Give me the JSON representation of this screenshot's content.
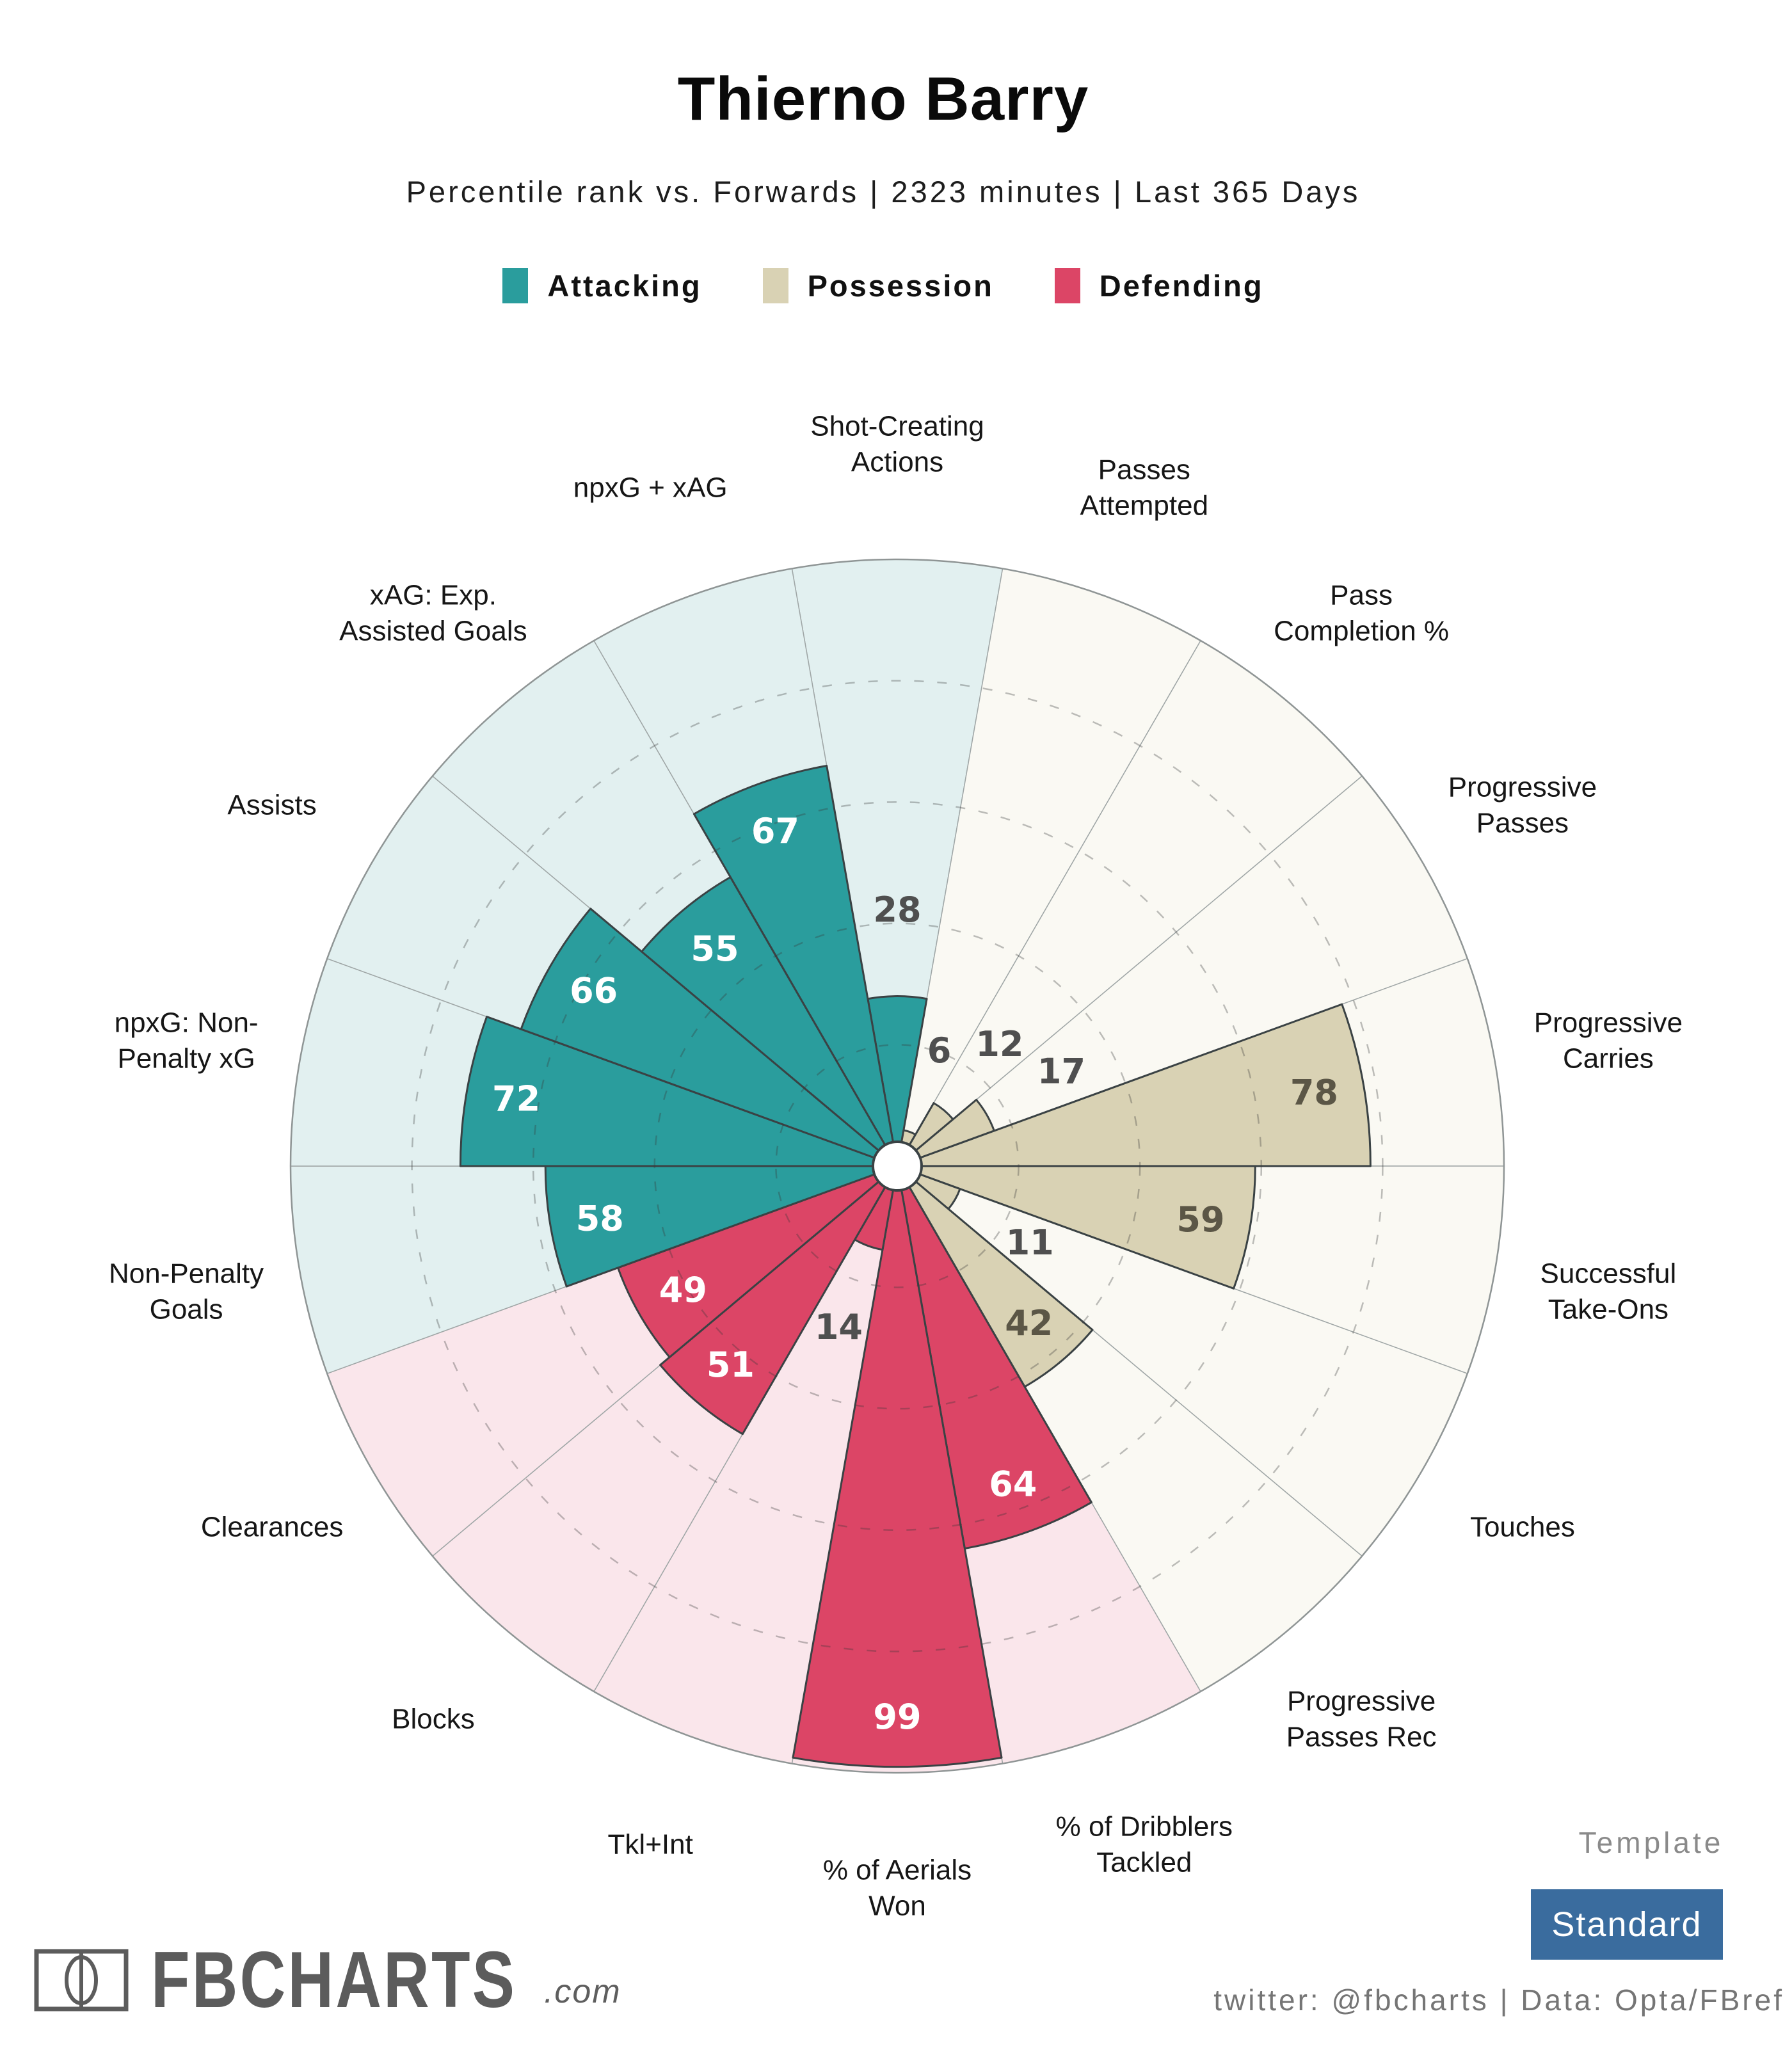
{
  "header": {
    "title": "Thierno Barry",
    "subtitle": "Percentile rank vs. Forwards | 2323 minutes | Last 365 Days",
    "legend": [
      {
        "id": "attacking",
        "label": "Attacking"
      },
      {
        "id": "possession",
        "label": "Possession"
      },
      {
        "id": "defending",
        "label": "Defending"
      }
    ]
  },
  "chart_data": {
    "type": "bar",
    "variant": "pizza-polar-percentile",
    "title": "Thierno Barry",
    "subtitle": "Percentile rank vs. Forwards | 2323 minutes | Last 365 Days",
    "max_value": 100,
    "slice_angle_deg": 20,
    "start_angle_deg": 90,
    "direction": "clockwise",
    "grid_rings": [
      20,
      40,
      60,
      80
    ],
    "grid_style": "dashed",
    "categories": [
      "Shot-Creating Actions",
      "Passes Attempted",
      "Pass Completion %",
      "Progressive Passes",
      "Progressive Carries",
      "Successful Take-Ons",
      "Touches",
      "Progressive Passes Rec",
      "% of Dribblers Tackled",
      "% of Aerials Won",
      "Tkl+Int",
      "Blocks",
      "Clearances",
      "Non-Penalty Goals",
      "npxG: Non-Penalty xG",
      "Assists",
      "xAG: Exp. Assisted Goals",
      "npxG + xAG"
    ],
    "values": [
      28,
      6,
      12,
      17,
      78,
      59,
      11,
      42,
      64,
      99,
      14,
      51,
      49,
      58,
      72,
      66,
      55,
      67
    ],
    "slices": [
      {
        "name": "Shot-Creating Actions",
        "lines": [
          "Shot-Creating",
          "Actions"
        ],
        "value": 28,
        "group": "attacking"
      },
      {
        "name": "Passes Attempted",
        "lines": [
          "Passes",
          "Attempted"
        ],
        "value": 6,
        "group": "possession"
      },
      {
        "name": "Pass Completion %",
        "lines": [
          "Pass",
          "Completion %"
        ],
        "value": 12,
        "group": "possession"
      },
      {
        "name": "Progressive Passes",
        "lines": [
          "Progressive",
          "Passes"
        ],
        "value": 17,
        "group": "possession"
      },
      {
        "name": "Progressive Carries",
        "lines": [
          "Progressive",
          "Carries"
        ],
        "value": 78,
        "group": "possession"
      },
      {
        "name": "Successful Take-Ons",
        "lines": [
          "Successful",
          "Take-Ons"
        ],
        "value": 59,
        "group": "possession"
      },
      {
        "name": "Touches",
        "lines": [
          "Touches"
        ],
        "value": 11,
        "group": "possession"
      },
      {
        "name": "Progressive Passes Rec",
        "lines": [
          "Progressive",
          "Passes Rec"
        ],
        "value": 42,
        "group": "possession"
      },
      {
        "name": "% of Dribblers Tackled",
        "lines": [
          "% of Dribblers",
          "Tackled"
        ],
        "value": 64,
        "group": "defending"
      },
      {
        "name": "% of Aerials Won",
        "lines": [
          "% of Aerials",
          "Won"
        ],
        "value": 99,
        "group": "defending"
      },
      {
        "name": "Tkl+Int",
        "lines": [
          "Tkl+Int"
        ],
        "value": 14,
        "group": "defending"
      },
      {
        "name": "Blocks",
        "lines": [
          "Blocks"
        ],
        "value": 51,
        "group": "defending"
      },
      {
        "name": "Clearances",
        "lines": [
          "Clearances"
        ],
        "value": 49,
        "group": "defending"
      },
      {
        "name": "Non-Penalty Goals",
        "lines": [
          "Non-Penalty",
          "Goals"
        ],
        "value": 58,
        "group": "attacking"
      },
      {
        "name": "npxG: Non-Penalty xG",
        "lines": [
          "npxG: Non-",
          "Penalty xG"
        ],
        "value": 72,
        "group": "attacking"
      },
      {
        "name": "Assists",
        "lines": [
          "Assists"
        ],
        "value": 66,
        "group": "attacking"
      },
      {
        "name": "xAG: Exp. Assisted Goals",
        "lines": [
          "xAG: Exp.",
          "Assisted Goals"
        ],
        "value": 55,
        "group": "attacking"
      },
      {
        "name": "npxG + xAG",
        "lines": [
          "npxG + xAG"
        ],
        "value": 67,
        "group": "attacking"
      }
    ],
    "groups": {
      "attacking": {
        "label": "Attacking",
        "fill": "#2A9D9D",
        "bg": "#E2F0F0",
        "inside_text": "#FFFFFF"
      },
      "possession": {
        "label": "Possession",
        "fill": "#D9D2B4",
        "bg": "#FAF9F3",
        "inside_text": "#5B5646"
      },
      "defending": {
        "label": "Defending",
        "fill": "#DC4566",
        "bg": "#FAE6EB",
        "inside_text": "#FFFFFF"
      }
    },
    "style": {
      "outside_value_color": "#4F4F4F",
      "category_label_color": "#161616",
      "wedge_outline": "#3A4244",
      "bg_outline": "#9FA6A6",
      "outer_circle": "#8F9595",
      "ring_color": "rgba(55,55,55,0.32)",
      "center_hole_fill": "#FFFFFF"
    }
  },
  "footer": {
    "brand": "FBCHARTS",
    "brand_suffix": ".com",
    "template_label": "Template",
    "template_value": "Standard",
    "credit": "twitter: @fbcharts | Data: Opta/FBref"
  }
}
